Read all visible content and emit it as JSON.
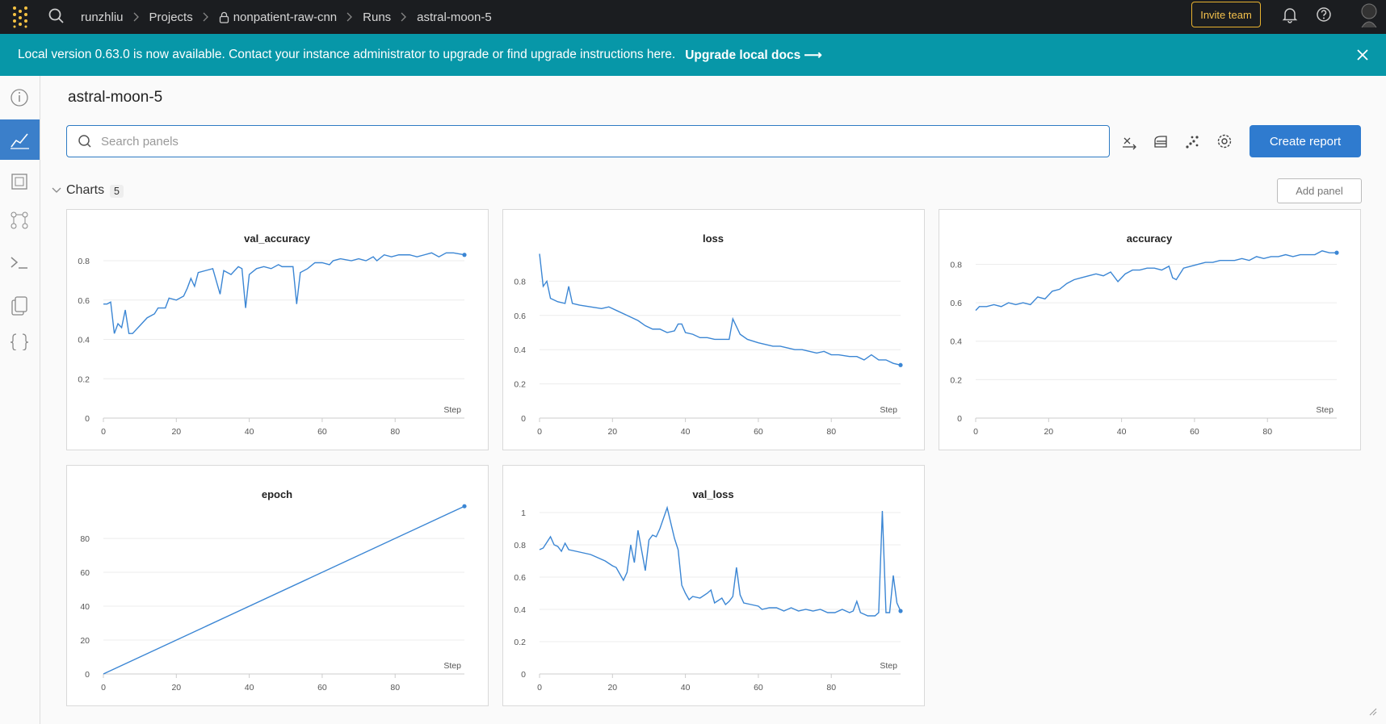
{
  "topbar": {
    "breadcrumbs": [
      "runzhliu",
      "Projects",
      "nonpatient-raw-cnn",
      "Runs",
      "astral-moon-5"
    ],
    "invite_button": "Invite team"
  },
  "banner": {
    "message": "Local version 0.63.0 is now available. Contact your instance administrator to upgrade or find upgrade instructions here.",
    "link": "Upgrade local docs ⟶"
  },
  "page": {
    "title": "astral-moon-5",
    "search_placeholder": "Search panels",
    "create_button": "Create report",
    "section_title": "Charts",
    "section_count": 5,
    "add_panel": "Add panel"
  },
  "chart_data": [
    {
      "type": "line",
      "title": "val_accuracy",
      "xlabel": "Step",
      "color": "#3b86d4",
      "xlim": [
        0,
        99
      ],
      "ylim": [
        0,
        0.87
      ],
      "xticks": [
        0,
        20,
        40,
        60,
        80
      ],
      "yticks": [
        0,
        0.2,
        0.4,
        0.6,
        0.8
      ],
      "x": [
        0,
        1,
        2,
        3,
        4,
        5,
        6,
        7,
        8,
        10,
        12,
        14,
        15,
        17,
        18,
        20,
        22,
        23,
        24,
        25,
        26,
        28,
        30,
        32,
        33,
        35,
        37,
        38,
        39,
        40,
        42,
        44,
        46,
        48,
        49,
        50,
        52,
        53,
        54,
        56,
        58,
        60,
        62,
        63,
        65,
        68,
        70,
        72,
        74,
        75,
        77,
        79,
        81,
        84,
        86,
        88,
        90,
        92,
        94,
        96,
        99
      ],
      "values": [
        0.58,
        0.58,
        0.59,
        0.43,
        0.48,
        0.46,
        0.55,
        0.43,
        0.43,
        0.47,
        0.51,
        0.53,
        0.56,
        0.56,
        0.61,
        0.6,
        0.62,
        0.66,
        0.71,
        0.67,
        0.74,
        0.75,
        0.76,
        0.63,
        0.75,
        0.73,
        0.77,
        0.76,
        0.56,
        0.73,
        0.76,
        0.77,
        0.76,
        0.78,
        0.77,
        0.77,
        0.77,
        0.58,
        0.74,
        0.76,
        0.79,
        0.79,
        0.78,
        0.8,
        0.81,
        0.8,
        0.81,
        0.8,
        0.82,
        0.8,
        0.83,
        0.82,
        0.83,
        0.83,
        0.82,
        0.83,
        0.84,
        0.82,
        0.84,
        0.84,
        0.83
      ]
    },
    {
      "type": "line",
      "title": "loss",
      "xlabel": "Step",
      "color": "#3b86d4",
      "xlim": [
        0,
        99
      ],
      "ylim": [
        0,
        1
      ],
      "xticks": [
        0,
        20,
        40,
        60,
        80
      ],
      "yticks": [
        0,
        0.2,
        0.4,
        0.6,
        0.8
      ],
      "x": [
        0,
        1,
        2,
        3,
        5,
        7,
        8,
        9,
        11,
        14,
        17,
        19,
        21,
        24,
        27,
        29,
        31,
        33,
        35,
        37,
        38,
        39,
        40,
        42,
        44,
        46,
        48,
        50,
        52,
        53,
        55,
        57,
        60,
        62,
        64,
        66,
        68,
        70,
        72,
        74,
        76,
        78,
        80,
        82,
        85,
        87,
        89,
        91,
        93,
        95,
        97,
        99
      ],
      "values": [
        0.96,
        0.77,
        0.8,
        0.7,
        0.68,
        0.67,
        0.77,
        0.67,
        0.66,
        0.65,
        0.64,
        0.65,
        0.63,
        0.6,
        0.57,
        0.54,
        0.52,
        0.52,
        0.5,
        0.51,
        0.55,
        0.55,
        0.5,
        0.49,
        0.47,
        0.47,
        0.46,
        0.46,
        0.46,
        0.58,
        0.49,
        0.46,
        0.44,
        0.43,
        0.42,
        0.42,
        0.41,
        0.4,
        0.4,
        0.39,
        0.38,
        0.39,
        0.37,
        0.37,
        0.36,
        0.36,
        0.34,
        0.37,
        0.34,
        0.34,
        0.32,
        0.31
      ]
    },
    {
      "type": "line",
      "title": "accuracy",
      "xlabel": "Step",
      "color": "#3b86d4",
      "xlim": [
        0,
        99
      ],
      "ylim": [
        0,
        0.89
      ],
      "xticks": [
        0,
        20,
        40,
        60,
        80
      ],
      "yticks": [
        0,
        0.2,
        0.4,
        0.6,
        0.8
      ],
      "x": [
        0,
        1,
        3,
        5,
        7,
        9,
        11,
        13,
        15,
        17,
        19,
        21,
        23,
        25,
        27,
        29,
        31,
        33,
        35,
        37,
        39,
        41,
        43,
        45,
        47,
        49,
        51,
        53,
        54,
        55,
        57,
        59,
        61,
        63,
        65,
        67,
        69,
        71,
        73,
        75,
        77,
        79,
        81,
        83,
        85,
        87,
        89,
        91,
        93,
        95,
        97,
        99
      ],
      "values": [
        0.56,
        0.58,
        0.58,
        0.59,
        0.58,
        0.6,
        0.59,
        0.6,
        0.59,
        0.63,
        0.62,
        0.66,
        0.67,
        0.7,
        0.72,
        0.73,
        0.74,
        0.75,
        0.74,
        0.76,
        0.71,
        0.75,
        0.77,
        0.77,
        0.78,
        0.78,
        0.77,
        0.79,
        0.73,
        0.72,
        0.78,
        0.79,
        0.8,
        0.81,
        0.81,
        0.82,
        0.82,
        0.82,
        0.83,
        0.82,
        0.84,
        0.83,
        0.84,
        0.84,
        0.85,
        0.84,
        0.85,
        0.85,
        0.85,
        0.87,
        0.86,
        0.86
      ]
    },
    {
      "type": "line",
      "title": "epoch",
      "xlabel": "Step",
      "color": "#3b86d4",
      "xlim": [
        0,
        99
      ],
      "ylim": [
        0,
        101
      ],
      "xticks": [
        0,
        20,
        40,
        60,
        80
      ],
      "yticks": [
        0,
        20,
        40,
        60,
        80
      ],
      "x": [
        0,
        99
      ],
      "values": [
        0,
        99
      ]
    },
    {
      "type": "line",
      "title": "val_loss",
      "xlabel": "Step",
      "color": "#3b86d4",
      "xlim": [
        0,
        99
      ],
      "ylim": [
        0,
        1.06
      ],
      "xticks": [
        0,
        20,
        40,
        60,
        80
      ],
      "yticks": [
        0,
        0.2,
        0.4,
        0.6,
        0.8,
        1
      ],
      "x": [
        0,
        1,
        3,
        4,
        5,
        6,
        7,
        8,
        10,
        12,
        14,
        16,
        18,
        20,
        21,
        22,
        23,
        24,
        25,
        26,
        27,
        29,
        30,
        31,
        32,
        33,
        35,
        37,
        38,
        39,
        40,
        41,
        42,
        44,
        46,
        47,
        48,
        50,
        51,
        52,
        53,
        54,
        55,
        56,
        58,
        60,
        61,
        63,
        65,
        67,
        69,
        71,
        73,
        75,
        77,
        79,
        81,
        83,
        85,
        86,
        87,
        88,
        90,
        92,
        93,
        94,
        95,
        96,
        97,
        98,
        99
      ],
      "values": [
        0.77,
        0.78,
        0.85,
        0.8,
        0.79,
        0.76,
        0.81,
        0.77,
        0.76,
        0.75,
        0.74,
        0.72,
        0.7,
        0.67,
        0.66,
        0.62,
        0.58,
        0.63,
        0.8,
        0.69,
        0.89,
        0.64,
        0.83,
        0.86,
        0.85,
        0.9,
        1.03,
        0.84,
        0.77,
        0.55,
        0.5,
        0.46,
        0.48,
        0.47,
        0.5,
        0.52,
        0.44,
        0.47,
        0.43,
        0.45,
        0.48,
        0.66,
        0.49,
        0.44,
        0.43,
        0.42,
        0.4,
        0.41,
        0.41,
        0.39,
        0.41,
        0.39,
        0.4,
        0.39,
        0.4,
        0.38,
        0.38,
        0.4,
        0.38,
        0.39,
        0.45,
        0.38,
        0.36,
        0.36,
        0.38,
        1.01,
        0.38,
        0.38,
        0.61,
        0.44,
        0.39
      ]
    }
  ]
}
